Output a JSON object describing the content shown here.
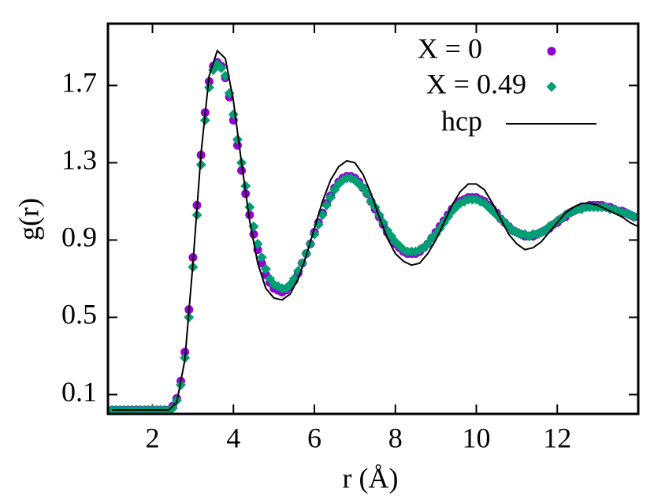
{
  "chart_data": {
    "type": "scatter",
    "xlabel": "r (Å)",
    "ylabel": "g(r)",
    "xlim": [
      0.9,
      14
    ],
    "ylim": [
      0,
      2.02
    ],
    "xticks": [
      2,
      4,
      6,
      8,
      10,
      12
    ],
    "yticks": [
      0.1,
      0.5,
      0.9,
      1.3,
      1.7
    ],
    "legend": "upper right",
    "x": [
      1.0,
      1.1,
      1.2,
      1.3,
      1.4,
      1.5,
      1.6,
      1.7,
      1.8,
      1.9,
      2.0,
      2.1,
      2.2,
      2.3,
      2.4,
      2.5,
      2.6,
      2.7,
      2.8,
      2.9,
      3.0,
      3.1,
      3.2,
      3.3,
      3.4,
      3.5,
      3.6,
      3.7,
      3.8,
      3.9,
      4.0,
      4.1,
      4.2,
      4.3,
      4.4,
      4.5,
      4.6,
      4.7,
      4.8,
      4.9,
      5.0,
      5.1,
      5.2,
      5.3,
      5.4,
      5.5,
      5.6,
      5.7,
      5.8,
      5.9,
      6.0,
      6.1,
      6.2,
      6.3,
      6.4,
      6.5,
      6.6,
      6.7,
      6.8,
      6.9,
      7.0,
      7.1,
      7.2,
      7.3,
      7.4,
      7.5,
      7.6,
      7.7,
      7.8,
      7.9,
      8.0,
      8.1,
      8.2,
      8.3,
      8.4,
      8.5,
      8.6,
      8.7,
      8.8,
      8.9,
      9.0,
      9.1,
      9.2,
      9.3,
      9.4,
      9.5,
      9.6,
      9.7,
      9.8,
      9.9,
      10.0,
      10.1,
      10.2,
      10.3,
      10.4,
      10.5,
      10.6,
      10.7,
      10.8,
      10.9,
      11.0,
      11.1,
      11.2,
      11.3,
      11.4,
      11.5,
      11.6,
      11.7,
      11.8,
      11.9,
      12.0,
      12.1,
      12.2,
      12.3,
      12.4,
      12.5,
      12.6,
      12.7,
      12.8,
      12.9,
      13.0,
      13.1,
      13.2,
      13.3,
      13.4,
      13.5,
      13.6,
      13.7,
      13.8,
      13.9
    ],
    "series": [
      {
        "name": "X = 0",
        "color": "#9400d3",
        "marker": "circle",
        "values": [
          0.02,
          0.02,
          0.02,
          0.02,
          0.02,
          0.02,
          0.02,
          0.02,
          0.02,
          0.02,
          0.02,
          0.02,
          0.02,
          0.02,
          0.02,
          0.04,
          0.08,
          0.17,
          0.32,
          0.54,
          0.81,
          1.08,
          1.34,
          1.56,
          1.72,
          1.8,
          1.82,
          1.8,
          1.74,
          1.64,
          1.52,
          1.39,
          1.26,
          1.14,
          1.03,
          0.93,
          0.85,
          0.78,
          0.72,
          0.68,
          0.65,
          0.64,
          0.63,
          0.64,
          0.66,
          0.69,
          0.73,
          0.78,
          0.83,
          0.88,
          0.94,
          0.99,
          1.04,
          1.09,
          1.13,
          1.17,
          1.2,
          1.22,
          1.23,
          1.23,
          1.22,
          1.2,
          1.17,
          1.14,
          1.1,
          1.06,
          1.02,
          0.98,
          0.94,
          0.91,
          0.88,
          0.86,
          0.84,
          0.83,
          0.83,
          0.83,
          0.84,
          0.86,
          0.88,
          0.91,
          0.94,
          0.97,
          1.0,
          1.03,
          1.06,
          1.08,
          1.1,
          1.11,
          1.12,
          1.12,
          1.12,
          1.11,
          1.1,
          1.08,
          1.06,
          1.04,
          1.01,
          0.99,
          0.97,
          0.95,
          0.94,
          0.93,
          0.92,
          0.92,
          0.92,
          0.93,
          0.94,
          0.95,
          0.96,
          0.98,
          0.99,
          1.01,
          1.02,
          1.04,
          1.05,
          1.06,
          1.07,
          1.07,
          1.08,
          1.08,
          1.08,
          1.08,
          1.07,
          1.07,
          1.06,
          1.05,
          1.05,
          1.04,
          1.03,
          1.02
        ]
      },
      {
        "name": "X = 0.49",
        "color": "#009e73",
        "marker": "diamond",
        "values": [
          0.02,
          0.02,
          0.02,
          0.02,
          0.02,
          0.02,
          0.02,
          0.02,
          0.02,
          0.02,
          0.02,
          0.02,
          0.02,
          0.02,
          0.02,
          0.03,
          0.07,
          0.15,
          0.29,
          0.5,
          0.76,
          1.03,
          1.29,
          1.52,
          1.69,
          1.78,
          1.81,
          1.79,
          1.75,
          1.66,
          1.55,
          1.42,
          1.3,
          1.18,
          1.07,
          0.97,
          0.88,
          0.81,
          0.75,
          0.7,
          0.67,
          0.66,
          0.65,
          0.65,
          0.67,
          0.7,
          0.74,
          0.78,
          0.83,
          0.88,
          0.93,
          0.98,
          1.03,
          1.08,
          1.12,
          1.16,
          1.19,
          1.21,
          1.22,
          1.22,
          1.21,
          1.19,
          1.17,
          1.14,
          1.1,
          1.07,
          1.03,
          0.99,
          0.95,
          0.92,
          0.89,
          0.87,
          0.85,
          0.84,
          0.84,
          0.84,
          0.85,
          0.86,
          0.88,
          0.91,
          0.93,
          0.96,
          0.99,
          1.02,
          1.05,
          1.07,
          1.09,
          1.1,
          1.11,
          1.11,
          1.11,
          1.1,
          1.09,
          1.07,
          1.05,
          1.03,
          1.01,
          0.99,
          0.97,
          0.95,
          0.94,
          0.93,
          0.93,
          0.92,
          0.93,
          0.93,
          0.94,
          0.95,
          0.97,
          0.98,
          1.0,
          1.01,
          1.03,
          1.04,
          1.05,
          1.06,
          1.06,
          1.07,
          1.07,
          1.07,
          1.07,
          1.07,
          1.07,
          1.06,
          1.06,
          1.05,
          1.04,
          1.04,
          1.03,
          1.02
        ]
      },
      {
        "name": "hcp",
        "color": "#000000",
        "marker": "line",
        "x": [
          1.0,
          1.2,
          1.4,
          1.6,
          1.8,
          2.0,
          2.2,
          2.4,
          2.6,
          2.8,
          3.0,
          3.2,
          3.4,
          3.6,
          3.8,
          4.0,
          4.2,
          4.4,
          4.6,
          4.8,
          5.0,
          5.2,
          5.4,
          5.6,
          5.8,
          6.0,
          6.2,
          6.4,
          6.6,
          6.8,
          7.0,
          7.2,
          7.4,
          7.6,
          7.8,
          8.0,
          8.2,
          8.4,
          8.6,
          8.8,
          9.0,
          9.2,
          9.4,
          9.6,
          9.8,
          10.0,
          10.2,
          10.4,
          10.6,
          10.8,
          11.0,
          11.2,
          11.4,
          11.6,
          11.8,
          12.0,
          12.2,
          12.4,
          12.6,
          12.8,
          13.0,
          13.2,
          13.4,
          13.6,
          13.8,
          14.0
        ],
        "values": [
          0.02,
          0.02,
          0.02,
          0.02,
          0.02,
          0.02,
          0.02,
          0.02,
          0.06,
          0.28,
          0.78,
          1.35,
          1.75,
          1.88,
          1.84,
          1.62,
          1.3,
          1.0,
          0.78,
          0.65,
          0.6,
          0.59,
          0.62,
          0.7,
          0.82,
          0.96,
          1.1,
          1.21,
          1.28,
          1.31,
          1.3,
          1.24,
          1.14,
          1.02,
          0.91,
          0.83,
          0.79,
          0.77,
          0.78,
          0.83,
          0.9,
          0.99,
          1.08,
          1.15,
          1.19,
          1.19,
          1.16,
          1.09,
          1.01,
          0.93,
          0.88,
          0.85,
          0.86,
          0.89,
          0.94,
          0.99,
          1.04,
          1.07,
          1.09,
          1.09,
          1.08,
          1.06,
          1.04,
          1.02,
          0.99,
          0.97
        ]
      }
    ]
  }
}
